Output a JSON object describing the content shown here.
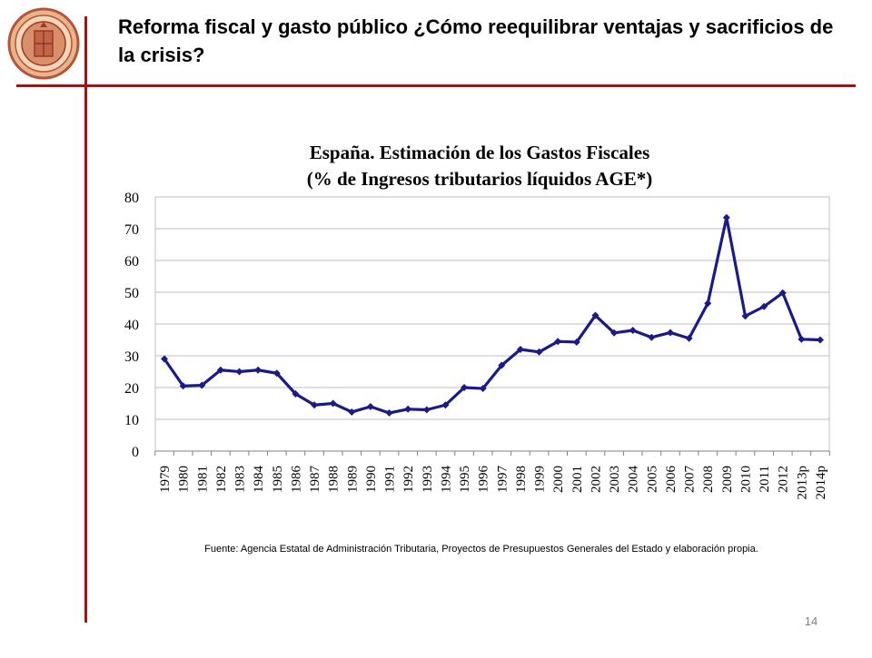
{
  "slide": {
    "title": "Reforma fiscal y gasto público ¿Cómo reequilibrar ventajas y sacrificios de la crisis?",
    "source": "Fuente: Agencia Estatal de Administración Tributaria,  Proyectos de Presupuestos Generales del Estado y elaboración propia.",
    "page_number": "14"
  },
  "colors": {
    "accent_rule": "#cc0000",
    "series_line": "#1a1a8c",
    "grid": "#bfbfbf"
  },
  "chart_data": {
    "type": "line",
    "title": "España. Estimación de los Gastos Fiscales",
    "subtitle": "(% de Ingresos tributarios líquidos AGE*)",
    "xlabel": "",
    "ylabel": "",
    "ylim": [
      0,
      80
    ],
    "yticks": [
      "0",
      "10",
      "20",
      "30",
      "40",
      "50",
      "60",
      "70",
      "80"
    ],
    "grid": true,
    "legend": "none",
    "categories": [
      "1979",
      "1980",
      "1981",
      "1982",
      "1983",
      "1984",
      "1985",
      "1986",
      "1987",
      "1988",
      "1989",
      "1990",
      "1991",
      "1992",
      "1993",
      "1994",
      "1995",
      "1996",
      "1997",
      "1998",
      "1999",
      "2000",
      "2001",
      "2002",
      "2003",
      "2004",
      "2005",
      "2006",
      "2007",
      "2008",
      "2009",
      "2010",
      "2011",
      "2012",
      "2013p",
      "2014p"
    ],
    "series": [
      {
        "values": [
          29,
          20.5,
          20.7,
          25.5,
          25,
          25.5,
          24.5,
          18,
          14.5,
          15,
          12.3,
          14,
          12,
          13.2,
          13,
          14.5,
          20,
          19.7,
          27,
          32,
          31.2,
          34.5,
          34.3,
          42.7,
          37.2,
          38,
          35.8,
          37.3,
          35.5,
          46.5,
          73.5,
          42.5,
          45.5,
          49.8,
          35.2,
          35
        ]
      }
    ]
  }
}
